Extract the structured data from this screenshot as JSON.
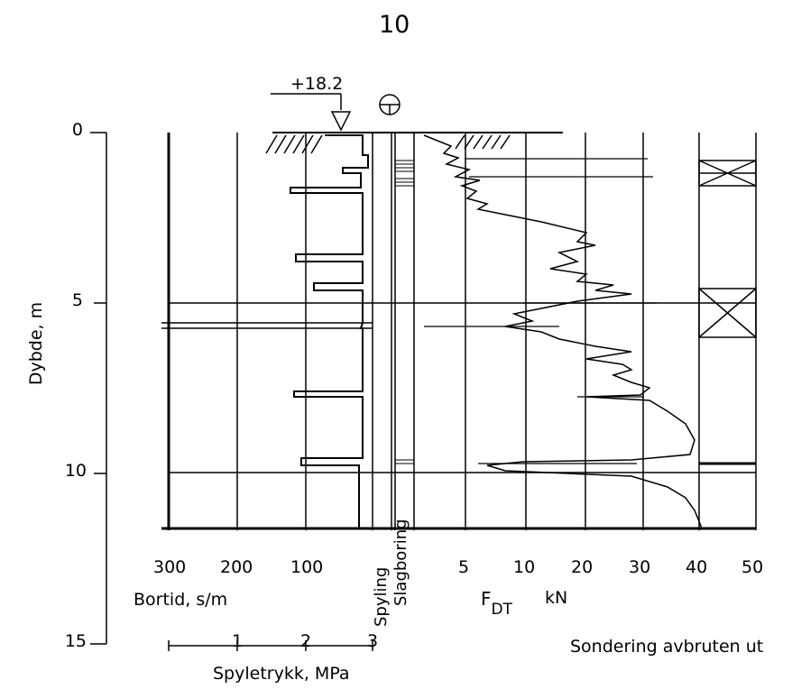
{
  "page_number": "10",
  "elevation": "+18.2",
  "depth_axis": {
    "title": "Dybde, m",
    "ticks": [
      "0",
      "5",
      "10",
      "15"
    ]
  },
  "bortid_axis": {
    "title": "Bortid, s/m",
    "ticks": [
      "300",
      "200",
      "100"
    ]
  },
  "pressure_axis": {
    "title": "Spyletrykk, MPa",
    "ticks": [
      "1",
      "2",
      "3"
    ]
  },
  "method_columns": {
    "spyling": "Spyling",
    "slagboring": "Slagboring"
  },
  "force_axis": {
    "symbol": "F",
    "subscript": "DT",
    "unit": "kN",
    "ticks": [
      "5",
      "10",
      "20",
      "30",
      "40",
      "50"
    ]
  },
  "termination_note": "Sondering avbruten ut",
  "colors": {
    "ink": "#000000",
    "paper": "#ffffff"
  }
}
